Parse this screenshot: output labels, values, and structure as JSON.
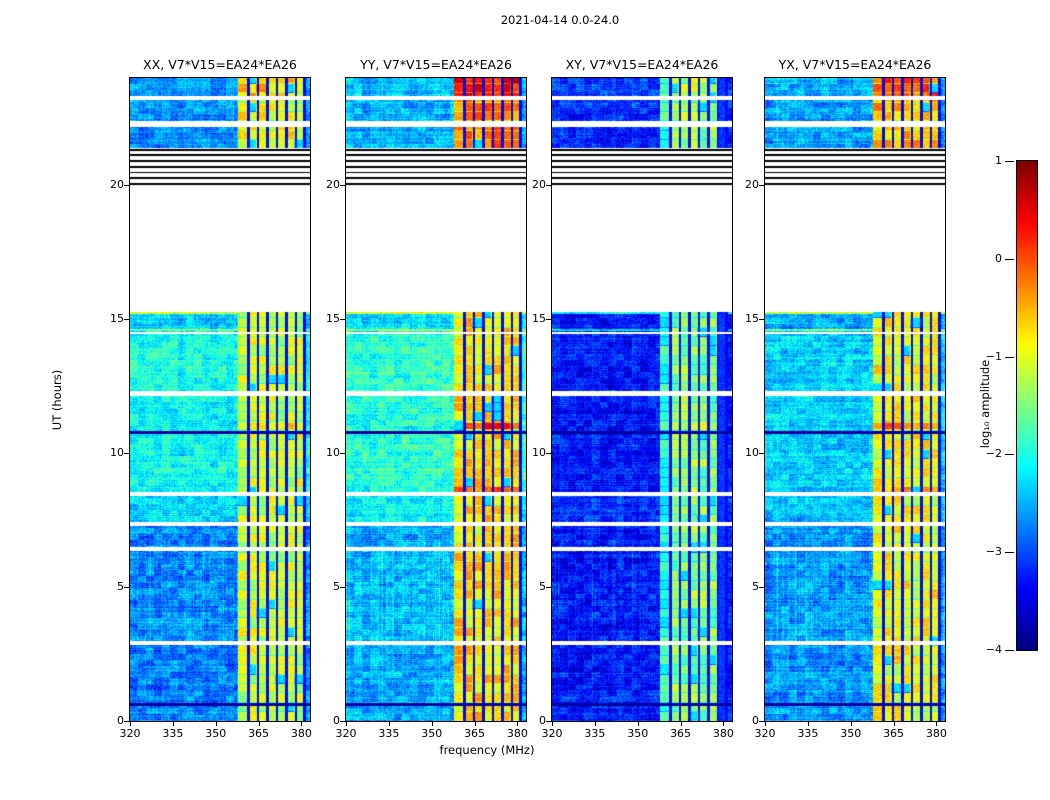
{
  "chart_data": {
    "type": "heatmap",
    "suptitle": "2021-04-14 0.0-24.0",
    "xlabel": "frequency (MHz)",
    "ylabel": "UT (hours)",
    "x_range": [
      320,
      383
    ],
    "x_ticks": [
      320,
      335,
      350,
      365,
      380
    ],
    "y_range": [
      0,
      24
    ],
    "y_ticks": [
      0,
      5,
      10,
      15,
      20
    ],
    "colorbar": {
      "label": "log₁₀ amplitude",
      "ticks": [
        1,
        0,
        -1,
        -2,
        -3,
        -4
      ],
      "vmin": -4,
      "vmax": 1,
      "colormap": "jet"
    },
    "panels": [
      {
        "title": "XX, V7*V15=EA24*EA26"
      },
      {
        "title": "YY, V7*V15=EA24*EA26"
      },
      {
        "title": "XY, V7*V15=EA24*EA26"
      },
      {
        "title": "YX, V7*V15=EA24*EA26"
      }
    ],
    "segments": [
      {
        "t0": 0.0,
        "t1": 2.84,
        "bases": [
          -2.75,
          -2.55,
          -3.25,
          -2.65
        ],
        "stripe": 0.6
      },
      {
        "t0": 3.0,
        "t1": 6.35,
        "bases": [
          -2.7,
          -2.45,
          -3.3,
          -2.6
        ],
        "stripe": 1.0
      },
      {
        "t0": 6.5,
        "t1": 7.3,
        "bases": [
          -2.75,
          -2.55,
          -3.25,
          -2.65
        ],
        "stripe": 0.6
      },
      {
        "t0": 7.45,
        "t1": 8.42,
        "bases": [
          -2.3,
          -2.15,
          -3.2,
          -2.45
        ],
        "stripe": 0.5
      },
      {
        "t0": 8.56,
        "t1": 12.16,
        "bases": [
          -2.1,
          -1.95,
          -3.3,
          -2.35
        ],
        "stripe": 0.5
      },
      {
        "t0": 12.34,
        "t1": 14.45,
        "bases": [
          -2.05,
          -1.9,
          -3.3,
          -2.3
        ],
        "stripe": 0.5
      },
      {
        "t0": 14.52,
        "t1": 15.3,
        "bases": [
          -2.35,
          -2.2,
          -3.3,
          -2.5
        ],
        "stripe": 0.5
      },
      {
        "t0": 21.4,
        "t1": 22.2,
        "bases": [
          -2.7,
          -2.5,
          -3.2,
          -2.6
        ],
        "stripe": 0.6
      },
      {
        "t0": 22.42,
        "t1": 23.2,
        "bases": [
          -2.7,
          -2.5,
          -3.2,
          -2.6
        ],
        "stripe": 0.6
      },
      {
        "t0": 23.34,
        "t1": 24.01,
        "bases": [
          -2.6,
          -2.4,
          -3.1,
          -2.5
        ],
        "stripe": 0.6
      }
    ],
    "no_data_gaps": [
      [
        2.84,
        3.0
      ],
      [
        6.35,
        6.5
      ],
      [
        7.3,
        7.45
      ],
      [
        8.42,
        8.56
      ],
      [
        12.16,
        12.34
      ],
      [
        14.45,
        14.52
      ],
      [
        15.3,
        21.4
      ],
      [
        22.2,
        22.42
      ],
      [
        23.2,
        23.34
      ]
    ],
    "dark_rows": [
      [
        0.58,
        0.7
      ],
      [
        10.72,
        10.86
      ]
    ],
    "black_lines": [
      20.05,
      20.27,
      20.49,
      20.71,
      20.93,
      21.15,
      21.33
    ],
    "bright_rows": [
      {
        "t0": 14.56,
        "t1": 14.64,
        "add": 0.95
      },
      {
        "t0": 15.22,
        "t1": 15.3,
        "add": 1.25
      }
    ],
    "rfi_hot_rows": [
      {
        "t0": 10.92,
        "t1": 11.15,
        "boosts": [
          0.35,
          0.85,
          0.2,
          0.55
        ]
      },
      {
        "t0": 8.58,
        "t1": 8.8,
        "boosts": [
          0.2,
          0.6,
          0.1,
          0.35
        ]
      }
    ],
    "rfi": {
      "f0": 357.5,
      "f1": 381.5,
      "col_width": 3.3,
      "bases": [
        -1.1,
        -0.7,
        -1.45,
        -0.9
      ],
      "spread": 0.7,
      "block_hours": 0.35,
      "dark_lines_f": [
        361.3,
        364.6,
        368.0,
        371.3,
        374.6,
        377.9,
        380.9
      ],
      "first_col_dim": [
        0,
        0,
        0.5,
        0
      ],
      "top_boost_half_t": 21.35,
      "top_boost_full_t": 23.3,
      "top_boosts": [
        0.45,
        1.05,
        0.3,
        0.85
      ],
      "col_overrides": [
        {
          "panel": 2,
          "f0": 378.4,
          "f1": 381.3,
          "value": -3.1
        }
      ]
    },
    "noise": {
      "pixel": 0.35,
      "row": 0.15,
      "blotch": 0.25,
      "stripe": 0.15,
      "stripe_spike": 0.35
    }
  }
}
